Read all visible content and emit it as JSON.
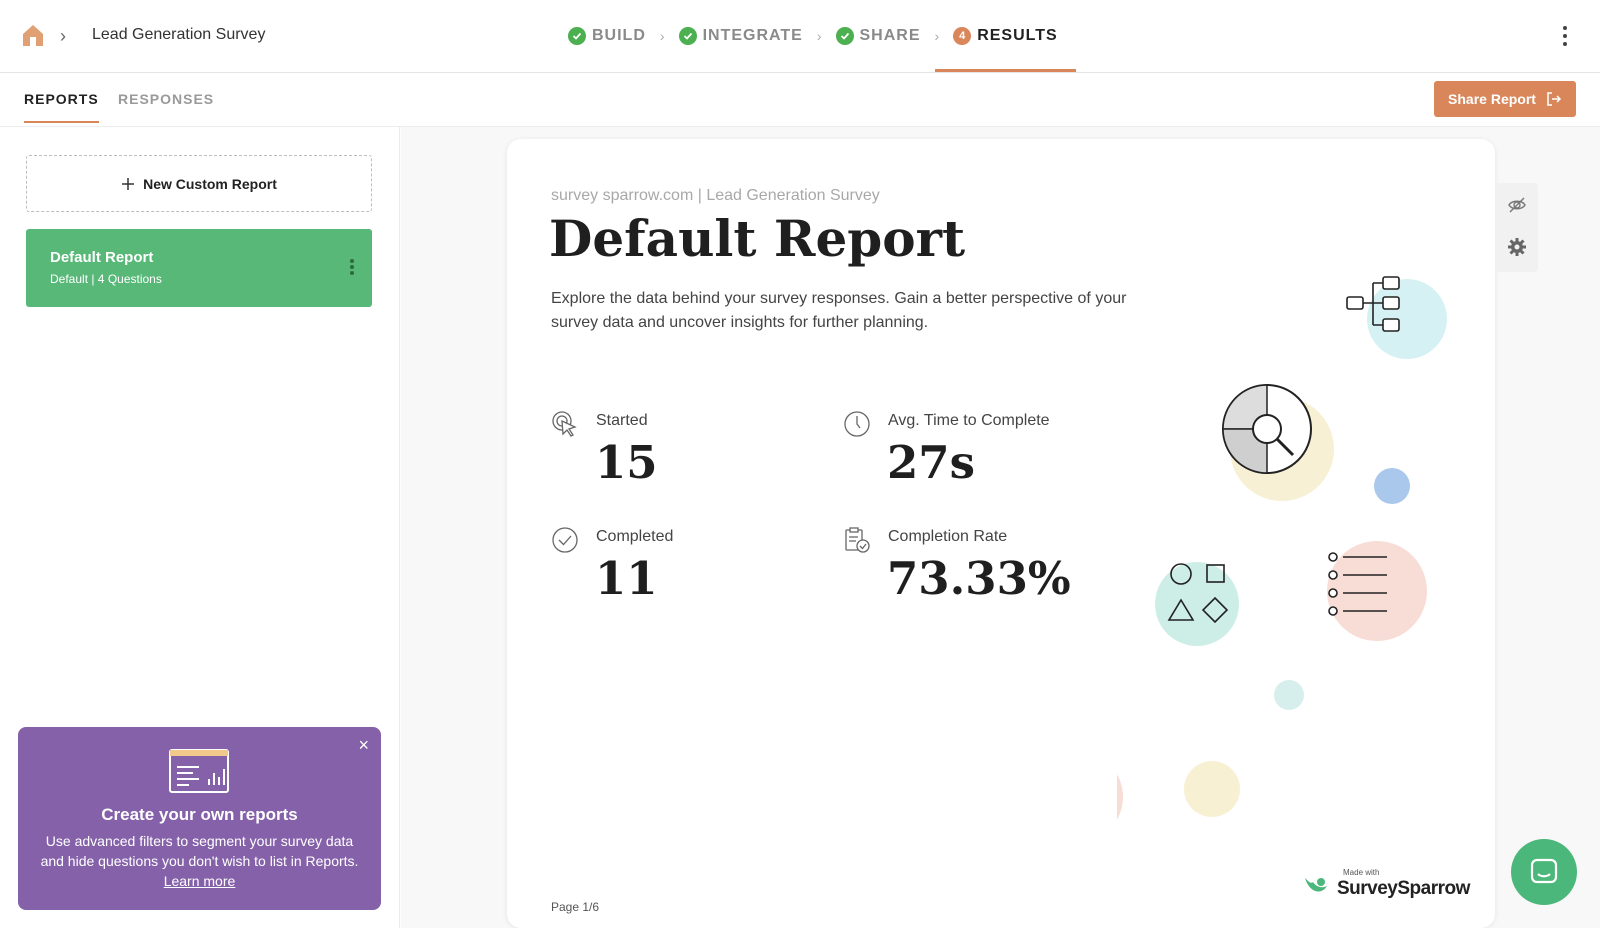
{
  "header": {
    "breadcrumb_title": "Lead Generation Survey",
    "steps": [
      {
        "label": "BUILD",
        "state": "done"
      },
      {
        "label": "INTEGRATE",
        "state": "done"
      },
      {
        "label": "SHARE",
        "state": "done"
      },
      {
        "label": "RESULTS",
        "state": "active",
        "number": "4"
      }
    ]
  },
  "subheader": {
    "tabs": [
      {
        "label": "REPORTS",
        "active": true
      },
      {
        "label": "RESPONSES",
        "active": false
      }
    ],
    "share_button": "Share Report"
  },
  "sidebar": {
    "new_report": "New Custom Report",
    "reports": [
      {
        "name": "Default Report",
        "meta": "Default  |  4 Questions"
      }
    ],
    "promo": {
      "title": "Create your own reports",
      "body": "Use advanced filters to segment your survey data and hide questions you don't wish to list in Reports.",
      "link": "Learn more"
    }
  },
  "report": {
    "source": "survey sparrow.com  |  Lead Generation Survey",
    "title": "Default Report",
    "description": "Explore the data behind your survey responses. Gain a better perspective of your survey data and uncover insights for further planning.",
    "stats": [
      {
        "label": "Started",
        "value": "15",
        "icon": "cursor-click-icon"
      },
      {
        "label": "Avg. Time to Complete",
        "value": "27s",
        "icon": "clock-icon"
      },
      {
        "label": "Completed",
        "value": "11",
        "icon": "check-circle-icon"
      },
      {
        "label": "Completion Rate",
        "value": "73.33%",
        "icon": "clipboard-check-icon"
      }
    ],
    "page": "Page 1/6",
    "brand_madewith": "Made with",
    "brand_name": "SurveySparrow"
  },
  "colors": {
    "accent": "#d9875a",
    "success": "#58b878",
    "promo": "#8561aa"
  }
}
